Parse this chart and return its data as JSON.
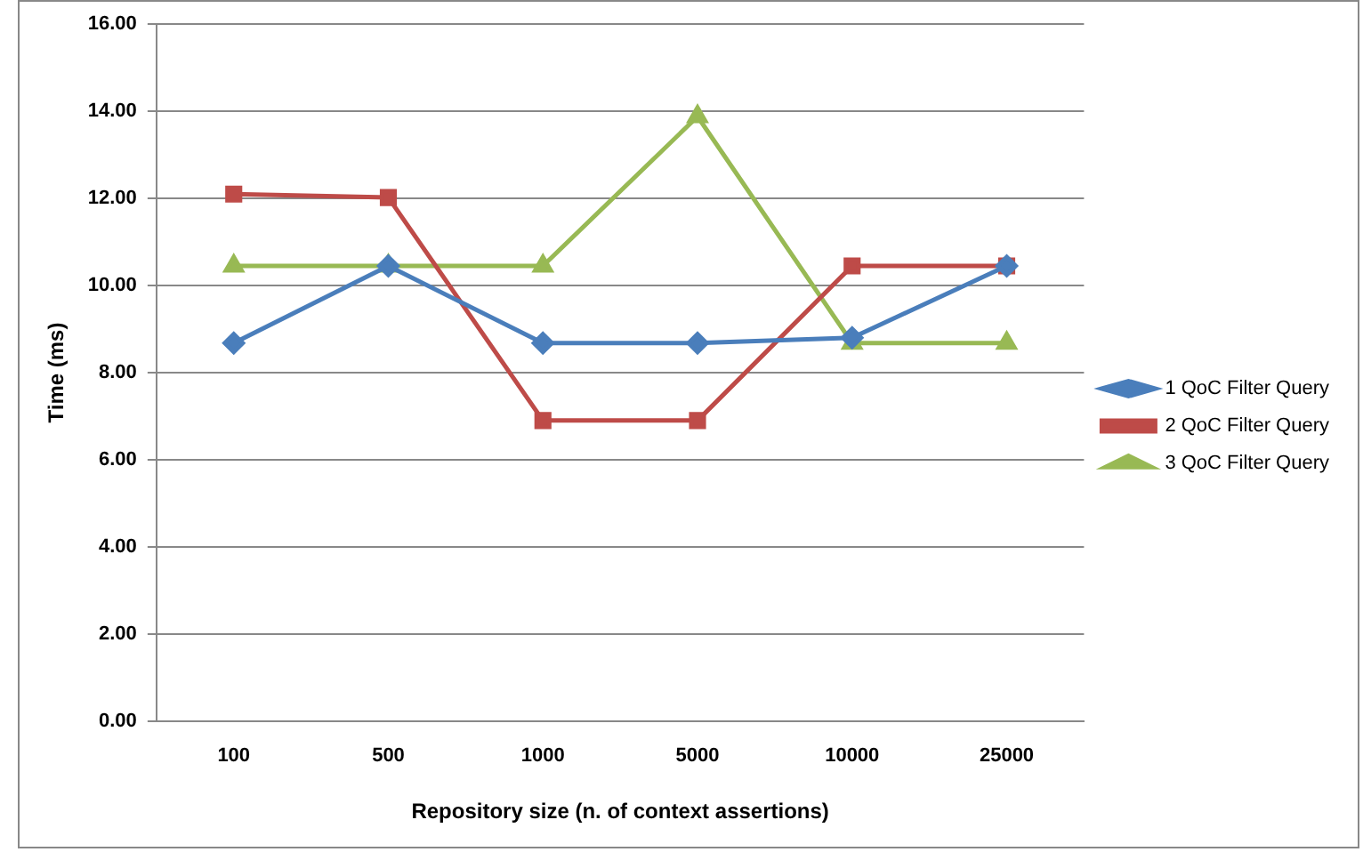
{
  "chart_data": {
    "type": "line",
    "xlabel": "Repository size (n. of context assertions)",
    "ylabel": "Time (ms)",
    "categories": [
      "100",
      "500",
      "1000",
      "5000",
      "10000",
      "25000"
    ],
    "series": [
      {
        "name": "1 QoC Filter Query",
        "color": "#4a7ebb",
        "marker": "diamond",
        "values": [
          8.68,
          10.45,
          8.68,
          8.68,
          8.8,
          10.45
        ]
      },
      {
        "name": "2 QoC Filter Query",
        "color": "#be4b48",
        "marker": "square",
        "values": [
          12.1,
          12.02,
          6.9,
          6.9,
          10.45,
          10.45
        ]
      },
      {
        "name": "3 QoC Filter Query",
        "color": "#98b954",
        "marker": "triangle",
        "values": [
          10.45,
          10.45,
          10.45,
          13.88,
          8.68,
          8.68
        ]
      }
    ],
    "ylim": [
      0,
      16
    ],
    "yticks": [
      {
        "value": 0,
        "label": "0.00"
      },
      {
        "value": 2,
        "label": "2.00"
      },
      {
        "value": 4,
        "label": "4.00"
      },
      {
        "value": 6,
        "label": "6.00"
      },
      {
        "value": 8,
        "label": "8.00"
      },
      {
        "value": 10,
        "label": "10.00"
      },
      {
        "value": 12,
        "label": "12.00"
      },
      {
        "value": 14,
        "label": "14.00"
      },
      {
        "value": 16,
        "label": "16.00"
      }
    ],
    "grid": "y",
    "legend": "right",
    "line_style": "solid"
  }
}
